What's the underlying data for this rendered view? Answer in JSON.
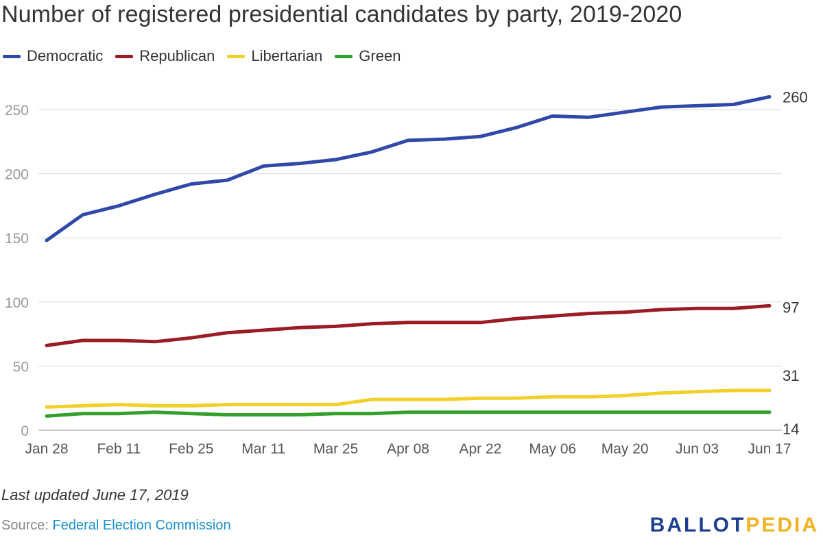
{
  "title": "Number of registered presidential candidates by party, 2019-2020",
  "legend": [
    {
      "name": "Democratic",
      "color": "#3048a8"
    },
    {
      "name": "Republican",
      "color": "#9b1c25"
    },
    {
      "name": "Libertarian",
      "color": "#f2d02c"
    },
    {
      "name": "Green",
      "color": "#33a02c"
    }
  ],
  "chart_data": {
    "type": "line",
    "title": "Number of registered presidential candidates by party, 2019-2020",
    "xlabel": "",
    "ylabel": "",
    "ylim": [
      0,
      260
    ],
    "yticks": [
      0,
      50,
      100,
      150,
      200,
      250
    ],
    "categories": [
      "Jan 28",
      "Feb 04",
      "Feb 11",
      "Feb 18",
      "Feb 25",
      "Mar 04",
      "Mar 11",
      "Mar 18",
      "Mar 25",
      "Apr 01",
      "Apr 08",
      "Apr 15",
      "Apr 22",
      "Apr 29",
      "May 06",
      "May 13",
      "May 20",
      "May 27",
      "Jun 03",
      "Jun 10",
      "Jun 17"
    ],
    "shown_tick_labels": [
      "Jan 28",
      "Feb 11",
      "Feb 25",
      "Mar 11",
      "Mar 25",
      "Apr 08",
      "Apr 22",
      "May 06",
      "May 20",
      "Jun 03",
      "Jun 17"
    ],
    "series": [
      {
        "name": "Democratic",
        "color": "#3048a8",
        "values": [
          148,
          168,
          175,
          184,
          192,
          195,
          206,
          208,
          211,
          217,
          226,
          227,
          229,
          236,
          245,
          244,
          248,
          252,
          253,
          254,
          260
        ]
      },
      {
        "name": "Republican",
        "color": "#9b1c25",
        "values": [
          66,
          70,
          70,
          69,
          72,
          76,
          78,
          80,
          81,
          83,
          84,
          84,
          84,
          87,
          89,
          91,
          92,
          94,
          95,
          95,
          97
        ]
      },
      {
        "name": "Libertarian",
        "color": "#f2d02c",
        "values": [
          18,
          19,
          20,
          19,
          19,
          20,
          20,
          20,
          20,
          24,
          24,
          24,
          25,
          25,
          26,
          26,
          27,
          29,
          30,
          31,
          31
        ]
      },
      {
        "name": "Green",
        "color": "#33a02c",
        "values": [
          11,
          13,
          13,
          14,
          13,
          12,
          12,
          12,
          13,
          13,
          14,
          14,
          14,
          14,
          14,
          14,
          14,
          14,
          14,
          14,
          14
        ]
      }
    ],
    "end_labels": [
      "260",
      "97",
      "31",
      "14"
    ]
  },
  "footer": {
    "updated": "Last updated June 17, 2019",
    "source_prefix": "Source: ",
    "source_link": "Federal Election Commission"
  },
  "brand": {
    "part1": "BALLOT",
    "part2": "PEDIA"
  }
}
